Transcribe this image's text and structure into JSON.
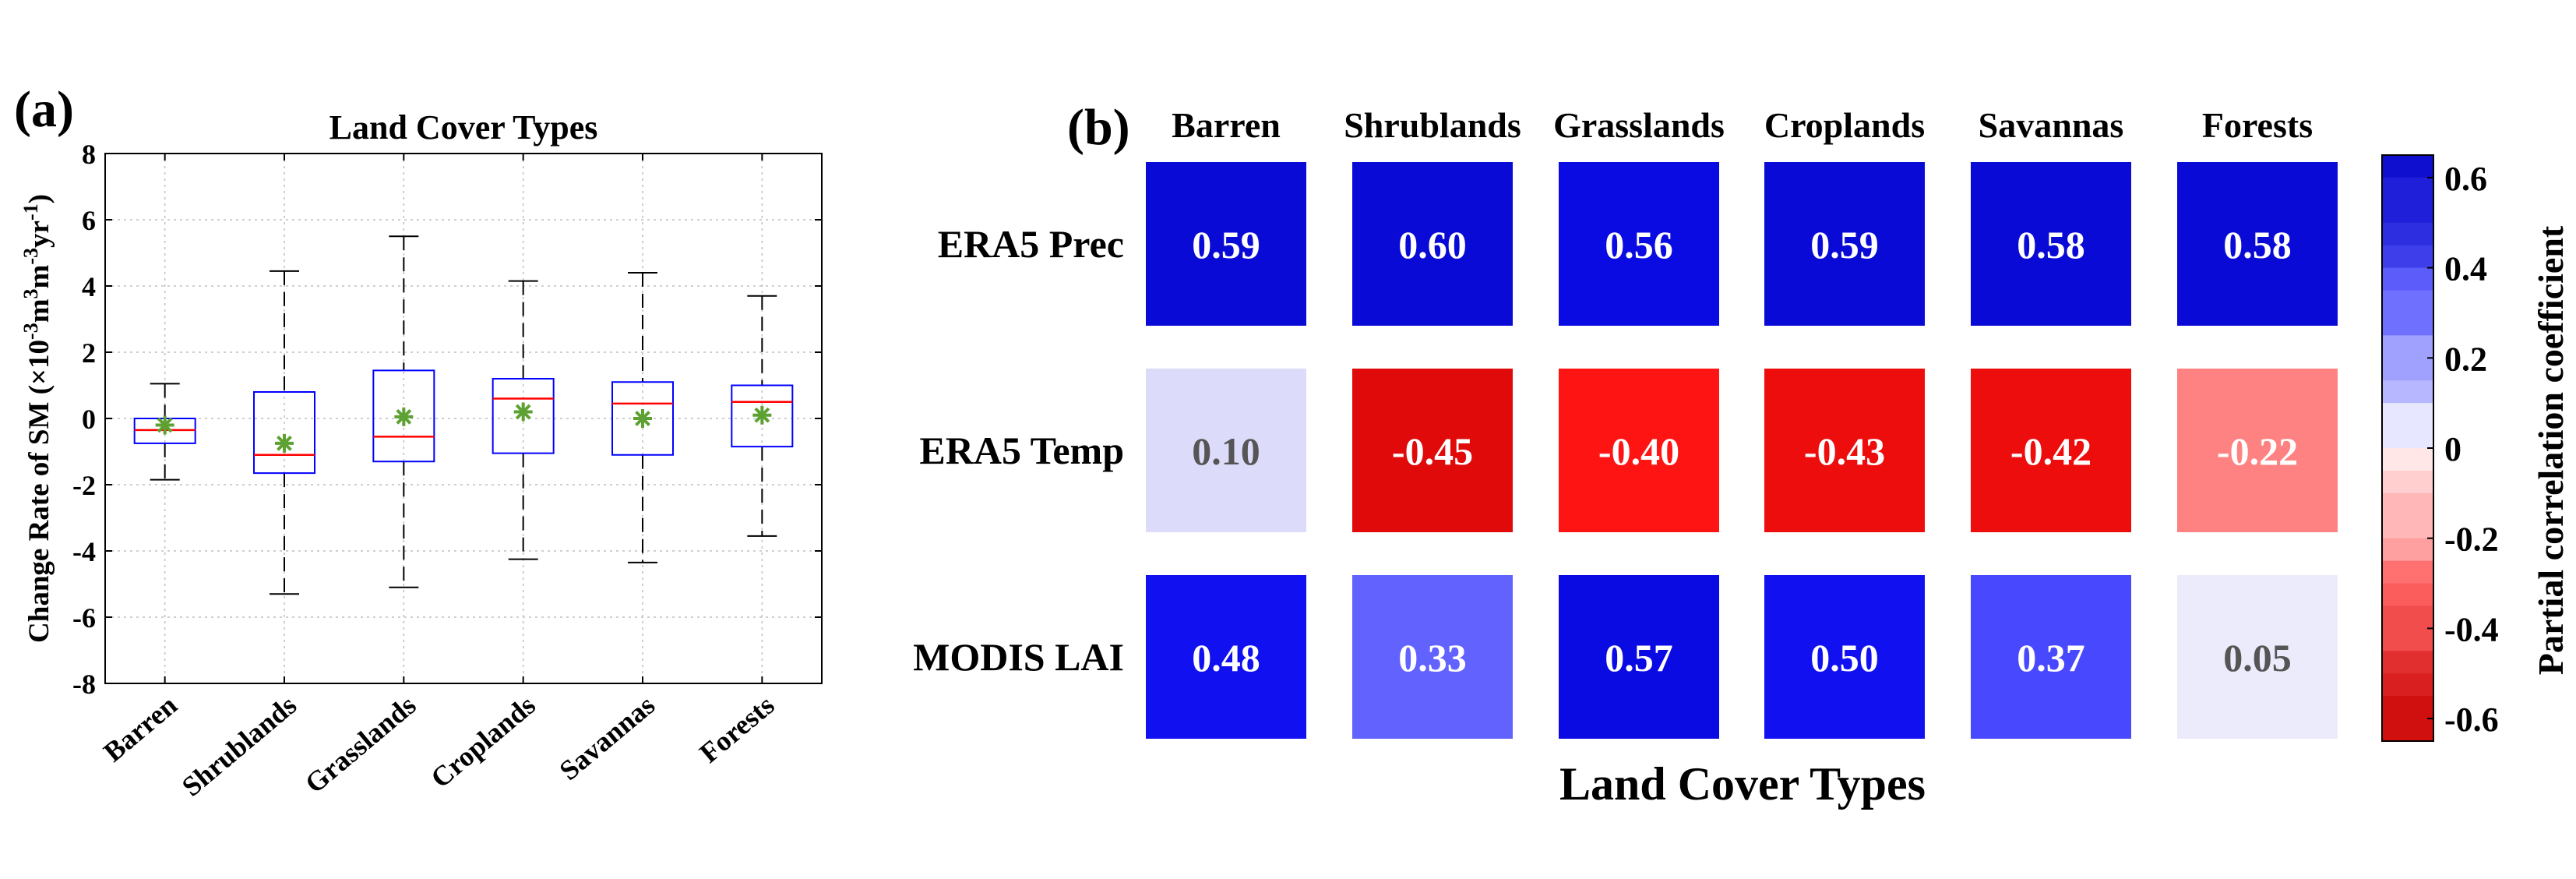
{
  "panel_a": {
    "label": "(a)"
  },
  "panel_b": {
    "label": "(b)"
  },
  "chart_data": [
    {
      "type": "box",
      "title": "Land Cover Types",
      "ylabel_main": "Change Rate of SM (×10",
      "ylabel_exp1": "-3",
      "ylabel_mid1": "m",
      "ylabel_exp2": "3",
      "ylabel_mid2": "m",
      "ylabel_exp3": "-3",
      "ylabel_mid3": "yr",
      "ylabel_exp4": "-1",
      "ylabel_end": ")",
      "xlabel": "",
      "ylim": [
        -8,
        8
      ],
      "yticks": [
        -8,
        -6,
        -4,
        -2,
        0,
        2,
        4,
        6,
        8
      ],
      "grid": true,
      "categories": [
        "Barren",
        "Shrublands",
        "Grasslands",
        "Croplands",
        "Savannas",
        "Forests"
      ],
      "boxes": [
        {
          "whisker_low": -1.85,
          "q1": -0.75,
          "median": -0.35,
          "q3": 0.0,
          "whisker_high": 1.05,
          "mean": -0.2
        },
        {
          "whisker_low": -5.3,
          "q1": -1.65,
          "median": -1.1,
          "q3": 0.8,
          "whisker_high": 4.45,
          "mean": -0.75
        },
        {
          "whisker_low": -5.1,
          "q1": -1.3,
          "median": -0.55,
          "q3": 1.45,
          "whisker_high": 5.5,
          "mean": 0.05
        },
        {
          "whisker_low": -4.25,
          "q1": -1.05,
          "median": 0.6,
          "q3": 1.2,
          "whisker_high": 4.15,
          "mean": 0.2
        },
        {
          "whisker_low": -4.35,
          "q1": -1.1,
          "median": 0.45,
          "q3": 1.1,
          "whisker_high": 4.4,
          "mean": 0.0
        },
        {
          "whisker_low": -3.55,
          "q1": -0.85,
          "median": 0.5,
          "q3": 1.0,
          "whisker_high": 3.7,
          "mean": 0.1
        }
      ],
      "colors": {
        "box": "#0000ff",
        "median": "#ff0000",
        "mean": "#5da132",
        "whisker": "#000000"
      }
    },
    {
      "type": "heatmap",
      "xlabel": "Land Cover Types",
      "colorbar_label": "Partial correlation coefficient",
      "columns": [
        "Barren",
        "Shrublands",
        "Grasslands",
        "Croplands",
        "Savannas",
        "Forests"
      ],
      "rows": [
        "ERA5 Prec",
        "ERA5 Temp",
        "MODIS LAI"
      ],
      "values": [
        [
          0.59,
          0.6,
          0.56,
          0.59,
          0.58,
          0.58
        ],
        [
          0.1,
          -0.45,
          -0.4,
          -0.43,
          -0.42,
          -0.22
        ],
        [
          0.48,
          0.33,
          0.57,
          0.5,
          0.37,
          0.05
        ]
      ],
      "value_labels": [
        [
          "0.59",
          "0.60",
          "0.56",
          "0.59",
          "0.58",
          "0.58"
        ],
        [
          "0.10",
          "-0.45",
          "-0.40",
          "-0.43",
          "-0.42",
          "-0.22"
        ],
        [
          "0.48",
          "0.33",
          "0.57",
          "0.50",
          "0.37",
          "0.05"
        ]
      ],
      "clim": [
        -0.65,
        0.65
      ],
      "colorbar_ticks": [
        "0.6",
        "0.4",
        "0.2",
        "0",
        "-0.2",
        "-0.4",
        "-0.6"
      ],
      "colorbar_tick_values": [
        0.6,
        0.4,
        0.2,
        0,
        -0.2,
        -0.4,
        -0.6
      ],
      "colormap": "blue-white-red"
    }
  ]
}
